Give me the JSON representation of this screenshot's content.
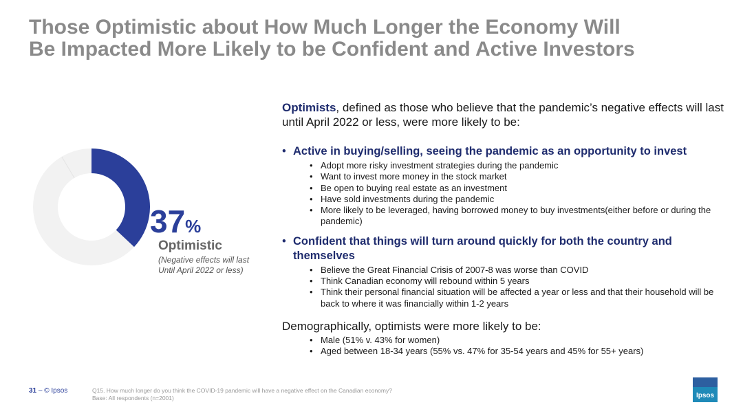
{
  "title": {
    "line1": "Those Optimistic about How Much Longer the Economy Will",
    "line2": "Be Impacted More Likely to be Confident and Active Investors"
  },
  "stat": {
    "value": 37,
    "number": "37",
    "unit": "%",
    "label": "Optimistic",
    "note_line1": "(Negative effects will last",
    "note_line2": "Until April 2022 or less)"
  },
  "colors": {
    "accent": "#2b3f9a",
    "donut_track": "#f2f2f2",
    "title_gray": "#8a8a8a"
  },
  "intro": {
    "strong": "Optimists",
    "rest": ", defined as those who believe that the pandemic’s negative effects will last until April 2022 or less, were more likely to be:"
  },
  "bullets": [
    {
      "heading": "Active in buying/selling, seeing the pandemic as an opportunity to invest",
      "items": [
        "Adopt more risky investment strategies during the pandemic",
        "Want to invest more money in the stock market",
        "Be open to buying real estate as an investment",
        "Have sold investments during the pandemic",
        "More likely to be leveraged, having borrowed money to buy investments(either before or during the pandemic)"
      ]
    },
    {
      "heading": "Confident that things will turn around quickly for both the country and themselves",
      "items": [
        "Believe the Great Financial Crisis of 2007-8 was worse than COVID",
        "Think Canadian economy will rebound within 5 years",
        "Think their personal financial situation will be affected a year or less and that their household will be back to where it was financially within 1-2 years"
      ]
    }
  ],
  "demographics": {
    "heading": "Demographically, optimists were more likely to be:",
    "items": [
      "Male (51% v. 43% for women)",
      "Aged between 18-34 years (55% vs. 47% for 35-54 years and 45% for 55+ years)"
    ]
  },
  "footer": {
    "page": "31",
    "sep": "–",
    "copyright": "© Ipsos",
    "question": "Q15. How much longer do you think the COVID-19 pandemic will have a negative effect on the Canadian economy?",
    "base": "Base: All respondents (n=2001)"
  },
  "logo": {
    "text": "Ipsos"
  }
}
